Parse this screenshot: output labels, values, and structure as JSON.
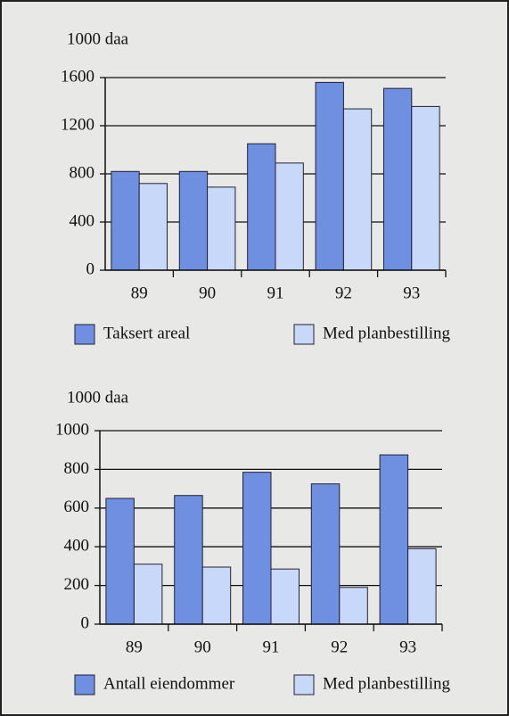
{
  "chart_data": [
    {
      "type": "bar",
      "y_label": "1000 daa",
      "categories": [
        "89",
        "90",
        "91",
        "92",
        "93"
      ],
      "series": [
        {
          "name": "Taksert areal",
          "color": "#6f8fe0",
          "values": [
            820,
            820,
            1050,
            1560,
            1510
          ]
        },
        {
          "name": "Med planbestilling",
          "color": "#c8d8f8",
          "values": [
            720,
            690,
            890,
            1340,
            1360
          ]
        }
      ],
      "ylim": [
        0,
        1600
      ],
      "yticks": [
        0,
        400,
        800,
        1200,
        1600
      ],
      "grid": true,
      "legend": "bottom"
    },
    {
      "type": "bar",
      "y_label": "1000 daa",
      "categories": [
        "89",
        "90",
        "91",
        "92",
        "93"
      ],
      "series": [
        {
          "name": "Antall eiendommer",
          "color": "#6f8fe0",
          "values": [
            650,
            665,
            785,
            725,
            875
          ]
        },
        {
          "name": "Med planbestilling",
          "color": "#c8d8f8",
          "values": [
            310,
            295,
            285,
            190,
            390
          ]
        }
      ],
      "ylim": [
        0,
        1000
      ],
      "yticks": [
        0,
        200,
        400,
        600,
        800,
        1000
      ],
      "grid": true,
      "legend": "bottom"
    }
  ]
}
